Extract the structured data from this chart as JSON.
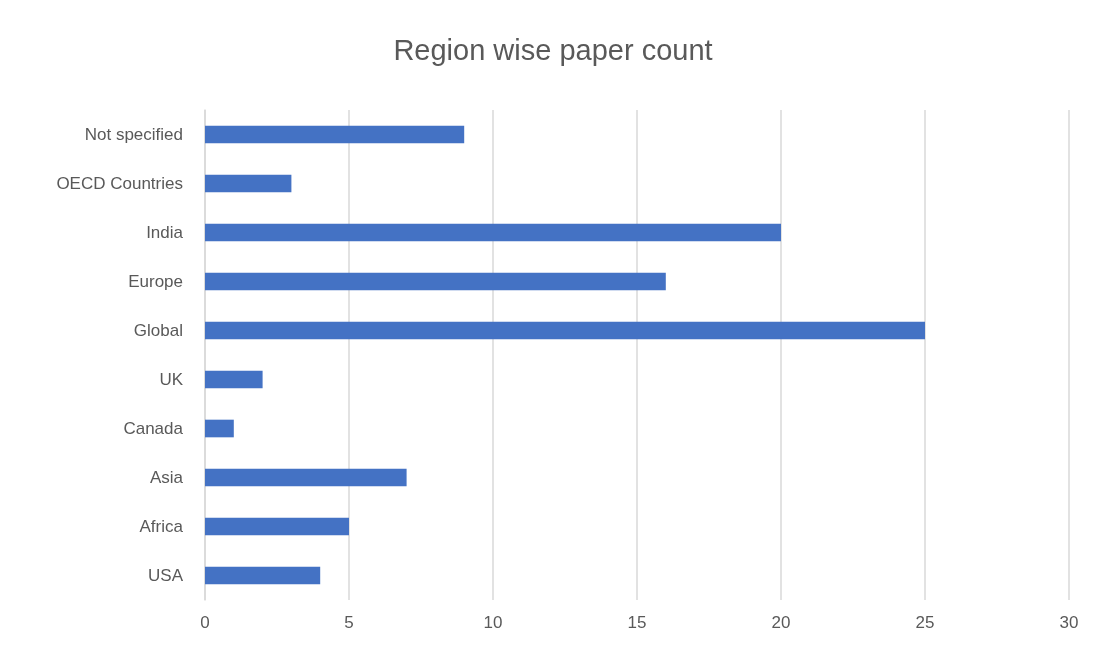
{
  "chart_data": {
    "type": "bar",
    "orientation": "horizontal",
    "title": "Region wise paper count",
    "categories": [
      "Not specified",
      "OECD Countries",
      "India",
      "Europe",
      "Global",
      "UK",
      "Canada",
      "Asia",
      "Africa",
      "USA"
    ],
    "values": [
      9,
      3,
      20,
      16,
      25,
      2,
      1,
      7,
      5,
      4
    ],
    "color": "#4472c4",
    "xlim": [
      0,
      30
    ],
    "xticks": [
      0,
      5,
      10,
      15,
      20,
      25,
      30
    ],
    "grid": "x"
  }
}
